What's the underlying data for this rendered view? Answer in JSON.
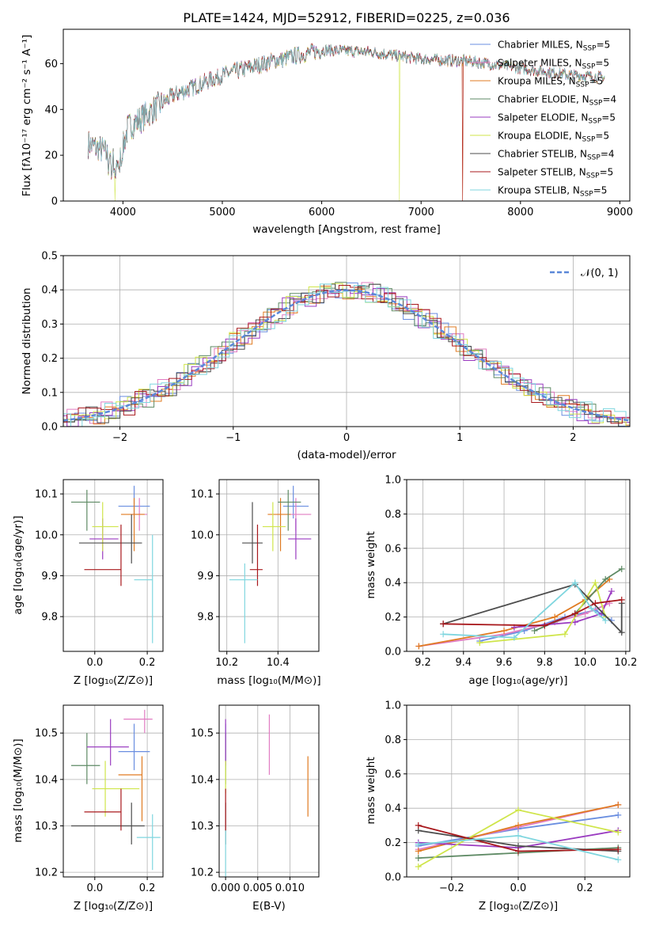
{
  "colors": {
    "chabrier_miles": "#6a8ee0",
    "salpeter_miles": "#e17cc2",
    "kroupa_miles": "#e07b22",
    "chabrier_elodie": "#5e8a64",
    "salpeter_elodie": "#9a3bc0",
    "kroupa_elodie": "#cfe54a",
    "chabrier_stelib": "#4d4d4d",
    "salpeter_stelib": "#a8181c",
    "kroupa_stelib": "#7fd6df",
    "normal_curve": "#5b88d8"
  },
  "chart_data": [
    {
      "id": "spectrum",
      "type": "line",
      "title": "PLATE=1424, MJD=52912, FIBERID=0225, z=0.036",
      "xlabel": "wavelength [Angstrom, rest frame]",
      "ylabel": "Flux [fλ10⁻¹⁷ erg cm⁻² s⁻¹ A⁻¹]",
      "xlim": [
        3400,
        9100
      ],
      "ylim": [
        0,
        75
      ],
      "xticks": [
        "4000",
        "5000",
        "6000",
        "7000",
        "8000",
        "9000"
      ],
      "yticks": [
        "0",
        "20",
        "40",
        "60"
      ],
      "grid": false,
      "legend_position": "top-right",
      "approx_continuum": {
        "x": [
          3650,
          3800,
          3950,
          4050,
          4250,
          4500,
          5000,
          5500,
          6000,
          6500,
          7000,
          7500,
          8000,
          8500,
          8850
        ],
        "y": [
          25,
          22,
          15,
          32,
          38,
          46,
          55,
          61,
          66,
          65,
          62,
          61,
          58,
          55,
          54
        ]
      },
      "glitch_drops": [
        {
          "series": "Kroupa ELODIE",
          "x": 3920
        },
        {
          "series": "Kroupa ELODIE",
          "x": 6780
        },
        {
          "series": "Kroupa MILES",
          "x": 7420
        },
        {
          "series": "Salpeter STELIB",
          "x": 7420
        }
      ],
      "series": [
        {
          "name": "Chabrier MILES",
          "nssp": "5"
        },
        {
          "name": "Salpeter MILES",
          "nssp": "5"
        },
        {
          "name": "Kroupa MILES",
          "nssp": "5"
        },
        {
          "name": "Chabrier ELODIE",
          "nssp": "4"
        },
        {
          "name": "Salpeter ELODIE",
          "nssp": "5"
        },
        {
          "name": "Kroupa ELODIE",
          "nssp": "5"
        },
        {
          "name": "Chabrier STELIB",
          "nssp": "4"
        },
        {
          "name": "Salpeter STELIB",
          "nssp": "5"
        },
        {
          "name": "Kroupa STELIB",
          "nssp": "5"
        }
      ]
    },
    {
      "id": "residuals",
      "type": "histogram",
      "xlabel": "(data-model)/error",
      "ylabel": "Normed distribution",
      "xlim": [
        -2.5,
        2.5
      ],
      "ylim": [
        0,
        0.5
      ],
      "xticks": [
        "−2",
        "−1",
        "0",
        "1",
        "2"
      ],
      "yticks": [
        "0.0",
        "0.1",
        "0.2",
        "0.3",
        "0.4",
        "0.5"
      ],
      "grid": true,
      "legend": "𝒩(0, 1)",
      "legend_position": "top-right",
      "bin_width": 0.1,
      "series": "one step histogram per model (9 models), following the standard normal density with scatter of about ±0.03"
    },
    {
      "id": "age_vs_Z",
      "type": "scatter",
      "xlabel": "Z [log₁₀(Z/Z⊙)]",
      "ylabel": "age  [log₁₀(age/yr)]",
      "xlim": [
        -0.12,
        0.26
      ],
      "ylim": [
        9.715,
        10.135
      ],
      "xticks": [
        "0.0",
        "0.2"
      ],
      "yticks": [
        "9.8",
        "9.9",
        "10.0",
        "10.1"
      ],
      "grid": true,
      "points": [
        {
          "model": "Chabrier MILES",
          "x": 0.15,
          "y": 10.07,
          "xerr": [
            0.06,
            0.06
          ],
          "yerr": [
            0.03,
            0.05
          ]
        },
        {
          "model": "Salpeter MILES",
          "x": 0.17,
          "y": 10.05,
          "xerr": [
            0.03,
            0.03
          ],
          "yerr": [
            0.04,
            0.04
          ]
        },
        {
          "model": "Kroupa MILES",
          "x": 0.15,
          "y": 10.05,
          "xerr": [
            0.05,
            0.04
          ],
          "yerr": [
            0.09,
            0.04
          ]
        },
        {
          "model": "Chabrier ELODIE",
          "x": -0.03,
          "y": 10.08,
          "xerr": [
            0.06,
            0.05
          ],
          "yerr": [
            0.07,
            0.03
          ]
        },
        {
          "model": "Salpeter ELODIE",
          "x": 0.03,
          "y": 9.99,
          "xerr": [
            0.05,
            0.06
          ],
          "yerr": [
            0.05,
            0.05
          ]
        },
        {
          "model": "Kroupa ELODIE",
          "x": 0.03,
          "y": 10.02,
          "xerr": [
            0.04,
            0.06
          ],
          "yerr": [
            0.06,
            0.06
          ]
        },
        {
          "model": "Chabrier STELIB",
          "x": 0.14,
          "y": 9.98,
          "xerr": [
            0.2,
            0.04
          ],
          "yerr": [
            0.05,
            0.07
          ]
        },
        {
          "model": "Salpeter STELIB",
          "x": 0.1,
          "y": 9.915,
          "xerr": [
            0.14,
            0.0
          ],
          "yerr": [
            0.04,
            0.11
          ]
        },
        {
          "model": "Kroupa STELIB",
          "x": 0.22,
          "y": 9.89,
          "xerr": [
            0.07,
            0.0
          ],
          "yerr": [
            0.155,
            0.11
          ]
        }
      ]
    },
    {
      "id": "age_vs_mass",
      "type": "scatter",
      "xlabel": "mass [log₁₀(M/M⊙)]",
      "xlim": [
        10.17,
        10.56
      ],
      "ylim": [
        9.715,
        10.135
      ],
      "xticks": [
        "10.2",
        "10.4"
      ],
      "yticks": [
        "9.8",
        "9.9",
        "10.0",
        "10.1"
      ],
      "grid": true,
      "points": [
        {
          "model": "Chabrier MILES",
          "x": 10.46,
          "y": 10.07,
          "xerr": [
            0.04,
            0.06
          ],
          "yerr": [
            0.03,
            0.05
          ]
        },
        {
          "model": "Salpeter MILES",
          "x": 10.47,
          "y": 10.05,
          "xerr": [
            0.02,
            0.06
          ],
          "yerr": [
            0.04,
            0.04
          ]
        },
        {
          "model": "Kroupa MILES",
          "x": 10.41,
          "y": 10.05,
          "xerr": [
            0.05,
            0.04
          ],
          "yerr": [
            0.09,
            0.04
          ]
        },
        {
          "model": "Chabrier ELODIE",
          "x": 10.44,
          "y": 10.08,
          "xerr": [
            0.04,
            0.05
          ],
          "yerr": [
            0.07,
            0.03
          ]
        },
        {
          "model": "Salpeter ELODIE",
          "x": 10.47,
          "y": 9.99,
          "xerr": [
            0.03,
            0.06
          ],
          "yerr": [
            0.05,
            0.05
          ]
        },
        {
          "model": "Kroupa ELODIE",
          "x": 10.38,
          "y": 10.02,
          "xerr": [
            0.04,
            0.05
          ],
          "yerr": [
            0.06,
            0.06
          ]
        },
        {
          "model": "Chabrier STELIB",
          "x": 10.3,
          "y": 9.98,
          "xerr": [
            0.04,
            0.04
          ],
          "yerr": [
            0.05,
            0.1
          ]
        },
        {
          "model": "Salpeter STELIB",
          "x": 10.32,
          "y": 9.915,
          "xerr": [
            0.03,
            0.02
          ],
          "yerr": [
            0.04,
            0.11
          ]
        },
        {
          "model": "Kroupa STELIB",
          "x": 10.27,
          "y": 9.89,
          "xerr": [
            0.06,
            0.05
          ],
          "yerr": [
            0.155,
            0.04
          ]
        }
      ]
    },
    {
      "id": "weight_vs_age",
      "type": "line",
      "xlabel": "age  [log₁₀(age/yr)]",
      "ylabel": "mass weight",
      "xlim": [
        9.12,
        10.22
      ],
      "ylim": [
        0,
        1
      ],
      "xticks": [
        "9.2",
        "9.4",
        "9.6",
        "9.8",
        "10.0",
        "10.2"
      ],
      "yticks": [
        "0.0",
        "0.2",
        "0.4",
        "0.6",
        "0.8",
        "1.0"
      ],
      "grid": true,
      "series": [
        {
          "model": "Chabrier MILES",
          "x": [
            9.48,
            9.7,
            9.9,
            10.05,
            10.13
          ],
          "y": [
            0.06,
            0.12,
            0.2,
            0.24,
            0.18
          ]
        },
        {
          "model": "Salpeter MILES",
          "x": [
            9.18,
            9.6,
            9.85,
            10.0,
            10.12
          ],
          "y": [
            0.03,
            0.1,
            0.17,
            0.22,
            0.28
          ]
        },
        {
          "model": "Kroupa MILES",
          "x": [
            9.18,
            9.6,
            9.85,
            10.0,
            10.12
          ],
          "y": [
            0.03,
            0.12,
            0.2,
            0.3,
            0.42
          ]
        },
        {
          "model": "Chabrier ELODIE",
          "x": [
            9.75,
            9.95,
            10.1,
            10.18
          ],
          "y": [
            0.12,
            0.22,
            0.42,
            0.48
          ]
        },
        {
          "model": "Salpeter ELODIE",
          "x": [
            9.65,
            9.95,
            10.08,
            10.13
          ],
          "y": [
            0.14,
            0.17,
            0.22,
            0.35
          ]
        },
        {
          "model": "Kroupa ELODIE",
          "x": [
            9.48,
            9.9,
            10.05,
            10.1
          ],
          "y": [
            0.05,
            0.1,
            0.4,
            0.2
          ]
        },
        {
          "model": "Chabrier STELIB",
          "x": [
            9.3,
            9.95,
            10.18,
            10.18
          ],
          "y": [
            0.16,
            0.39,
            0.11,
            0.28
          ]
        },
        {
          "model": "Salpeter STELIB",
          "x": [
            9.3,
            9.8,
            9.95,
            10.05,
            10.18
          ],
          "y": [
            0.16,
            0.15,
            0.22,
            0.28,
            0.3
          ]
        },
        {
          "model": "Kroupa STELIB",
          "x": [
            9.3,
            9.65,
            9.95,
            10.03,
            10.1
          ],
          "y": [
            0.1,
            0.08,
            0.4,
            0.25,
            0.18
          ]
        }
      ]
    },
    {
      "id": "mass_vs_Z",
      "type": "scatter",
      "xlabel": "Z [log₁₀(Z/Z⊙)]",
      "ylabel": "mass [log₁₀(M/M⊙)]",
      "xlim": [
        -0.12,
        0.26
      ],
      "ylim": [
        10.19,
        10.56
      ],
      "xticks": [
        "0.0",
        "0.2"
      ],
      "yticks": [
        "10.2",
        "10.3",
        "10.4",
        "10.5"
      ],
      "grid": true,
      "points": [
        {
          "model": "Chabrier MILES",
          "x": 0.15,
          "y": 10.46,
          "xerr": [
            0.06,
            0.06
          ],
          "yerr": [
            0.04,
            0.06
          ]
        },
        {
          "model": "Salpeter MILES",
          "x": 0.19,
          "y": 10.53,
          "xerr": [
            0.08,
            0.03
          ],
          "yerr": [
            0.03,
            0.02
          ]
        },
        {
          "model": "Kroupa MILES",
          "x": 0.18,
          "y": 10.41,
          "xerr": [
            0.09,
            0.0
          ],
          "yerr": [
            0.1,
            0.04
          ]
        },
        {
          "model": "Chabrier ELODIE",
          "x": -0.03,
          "y": 10.43,
          "xerr": [
            0.06,
            0.05
          ],
          "yerr": [
            0.04,
            0.07
          ]
        },
        {
          "model": "Salpeter ELODIE",
          "x": 0.06,
          "y": 10.47,
          "xerr": [
            0.09,
            0.07
          ],
          "yerr": [
            0.04,
            0.06
          ]
        },
        {
          "model": "Kroupa ELODIE",
          "x": 0.04,
          "y": 10.38,
          "xerr": [
            0.05,
            0.13
          ],
          "yerr": [
            0.06,
            0.06
          ]
        },
        {
          "model": "Chabrier STELIB",
          "x": 0.14,
          "y": 10.3,
          "xerr": [
            0.23,
            0.05
          ],
          "yerr": [
            0.04,
            0.05
          ]
        },
        {
          "model": "Salpeter STELIB",
          "x": 0.1,
          "y": 10.33,
          "xerr": [
            0.14,
            0.0
          ],
          "yerr": [
            0.04,
            0.05
          ]
        },
        {
          "model": "Kroupa STELIB",
          "x": 0.22,
          "y": 10.275,
          "xerr": [
            0.06,
            0.03
          ],
          "yerr": [
            0.07,
            0.05
          ]
        }
      ]
    },
    {
      "id": "mass_vs_ebv",
      "type": "scatter",
      "xlabel": "E(B-V)",
      "xlim": [
        -0.001,
        0.0145
      ],
      "ylim": [
        10.19,
        10.56
      ],
      "xticks": [
        "0.000",
        "0.005",
        "0.010"
      ],
      "yticks": [
        "10.2",
        "10.3",
        "10.4",
        "10.5"
      ],
      "grid": true,
      "points": [
        {
          "model": "Chabrier MILES",
          "x": 0.0,
          "y": 10.46,
          "yerr": [
            0.04,
            0.06
          ]
        },
        {
          "model": "Salpeter MILES",
          "x": 0.0068,
          "y": 10.5,
          "yerr": [
            0.09,
            0.04
          ]
        },
        {
          "model": "Kroupa MILES",
          "x": 0.0128,
          "y": 10.38,
          "yerr": [
            0.06,
            0.07
          ]
        },
        {
          "model": "Chabrier ELODIE",
          "x": 0.0,
          "y": 10.43,
          "yerr": [
            0.04,
            0.07
          ]
        },
        {
          "model": "Salpeter ELODIE",
          "x": 0.0,
          "y": 10.47,
          "yerr": [
            0.04,
            0.06
          ]
        },
        {
          "model": "Kroupa ELODIE",
          "x": 0.0,
          "y": 10.4,
          "yerr": [
            0.03,
            0.04
          ]
        },
        {
          "model": "Chabrier STELIB",
          "x": 0.0,
          "y": 10.3,
          "yerr": [
            0.04,
            0.05
          ]
        },
        {
          "model": "Salpeter STELIB",
          "x": 0.0,
          "y": 10.33,
          "yerr": [
            0.04,
            0.05
          ]
        },
        {
          "model": "Kroupa STELIB",
          "x": 0.0,
          "y": 10.26,
          "yerr": [
            0.07,
            0.03
          ]
        }
      ]
    },
    {
      "id": "weight_vs_Z",
      "type": "line",
      "xlabel": "Z [log₁₀(Z/Z⊙)]",
      "ylabel": "mass weight",
      "xlim": [
        -0.335,
        0.335
      ],
      "ylim": [
        0,
        1
      ],
      "xticks": [
        "−0.2",
        "0.0",
        "0.2"
      ],
      "yticks": [
        "0.0",
        "0.2",
        "0.4",
        "0.6",
        "0.8",
        "1.0"
      ],
      "grid": true,
      "series": [
        {
          "model": "Chabrier MILES",
          "x": [
            -0.3,
            0.0,
            0.3
          ],
          "y": [
            0.18,
            0.28,
            0.36
          ]
        },
        {
          "model": "Salpeter MILES",
          "x": [
            -0.3,
            0.0,
            0.3
          ],
          "y": [
            0.16,
            0.29,
            0.42
          ]
        },
        {
          "model": "Kroupa MILES",
          "x": [
            -0.3,
            0.0,
            0.3
          ],
          "y": [
            0.15,
            0.3,
            0.42
          ]
        },
        {
          "model": "Chabrier ELODIE",
          "x": [
            -0.3,
            0.0,
            0.3
          ],
          "y": [
            0.11,
            0.14,
            0.17
          ]
        },
        {
          "model": "Salpeter ELODIE",
          "x": [
            -0.3,
            0.0,
            0.3
          ],
          "y": [
            0.2,
            0.17,
            0.27
          ]
        },
        {
          "model": "Kroupa ELODIE",
          "x": [
            -0.3,
            0.0,
            0.3
          ],
          "y": [
            0.06,
            0.39,
            0.26
          ]
        },
        {
          "model": "Chabrier STELIB",
          "x": [
            -0.3,
            0.0,
            0.3
          ],
          "y": [
            0.27,
            0.18,
            0.15
          ]
        },
        {
          "model": "Salpeter STELIB",
          "x": [
            -0.3,
            0.0,
            0.3
          ],
          "y": [
            0.3,
            0.15,
            0.16
          ]
        },
        {
          "model": "Kroupa STELIB",
          "x": [
            -0.3,
            0.0,
            0.3
          ],
          "y": [
            0.19,
            0.24,
            0.1
          ]
        }
      ]
    }
  ]
}
